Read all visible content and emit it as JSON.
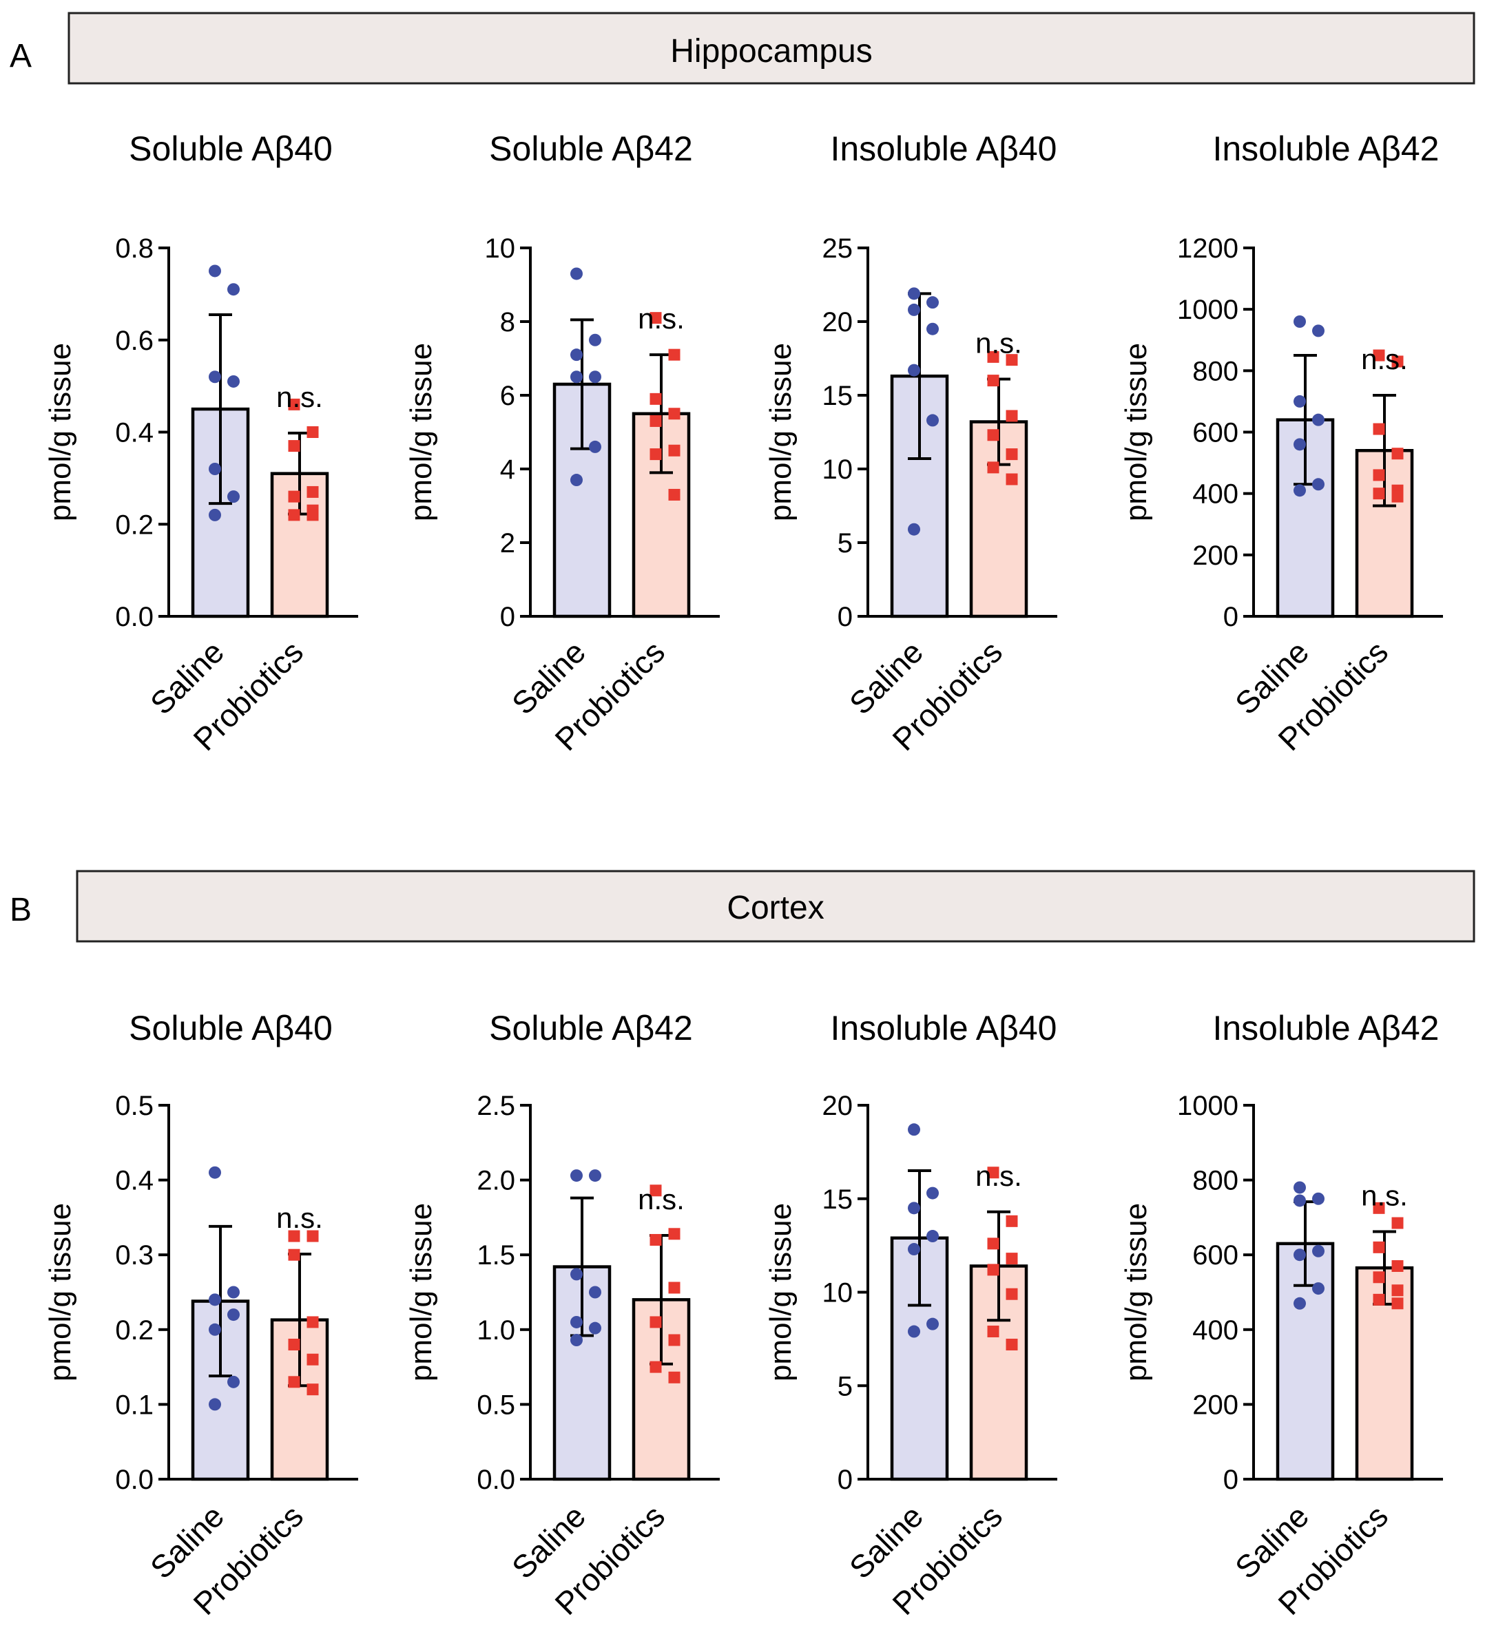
{
  "colors": {
    "saline_fill": "#dcdcf0",
    "probiotics_fill": "#fcdad1",
    "saline_point": "#3f4fa3",
    "probiotics_point": "#e8392f",
    "banner_fill": "#efe9e7"
  },
  "panels": [
    {
      "letter": "A",
      "region": "Hippocampus"
    },
    {
      "letter": "B",
      "region": "Cortex"
    }
  ],
  "chart_data": [
    {
      "type": "bar",
      "panel": "A",
      "title": "Soluble Aβ40",
      "ylabel": "pmol/g tissue",
      "categories": [
        "Saline",
        "Probiotics"
      ],
      "ylim": [
        0,
        0.8
      ],
      "ticks": [
        0.0,
        0.2,
        0.4,
        0.6,
        0.8
      ],
      "tick_labels": [
        "0.0",
        "0.2",
        "0.4",
        "0.6",
        "0.8"
      ],
      "annotation": "n.s.",
      "series": [
        {
          "name": "Saline",
          "mean": 0.45,
          "sd": 0.205,
          "points": [
            0.75,
            0.71,
            0.52,
            0.51,
            0.32,
            0.26,
            0.22
          ]
        },
        {
          "name": "Probiotics",
          "mean": 0.31,
          "sd": 0.088,
          "points": [
            0.46,
            0.4,
            0.37,
            0.27,
            0.26,
            0.23,
            0.22,
            0.22
          ]
        }
      ]
    },
    {
      "type": "bar",
      "panel": "A",
      "title": "Soluble Aβ42",
      "ylabel": "pmol/g tissue",
      "categories": [
        "Saline",
        "Probiotics"
      ],
      "ylim": [
        0,
        10
      ],
      "ticks": [
        0,
        2,
        4,
        6,
        8,
        10
      ],
      "tick_labels": [
        "0",
        "2",
        "4",
        "6",
        "8",
        "10"
      ],
      "annotation": "n.s.",
      "series": [
        {
          "name": "Saline",
          "mean": 6.3,
          "sd": 1.75,
          "points": [
            9.3,
            7.5,
            7.1,
            6.5,
            6.5,
            4.6,
            3.7
          ]
        },
        {
          "name": "Probiotics",
          "mean": 5.5,
          "sd": 1.6,
          "points": [
            8.1,
            7.1,
            5.9,
            5.5,
            5.3,
            4.5,
            4.4,
            3.3
          ]
        }
      ]
    },
    {
      "type": "bar",
      "panel": "A",
      "title": "Insoluble Aβ40",
      "ylabel": "pmol/g tissue",
      "categories": [
        "Saline",
        "Probiotics"
      ],
      "ylim": [
        0,
        25
      ],
      "ticks": [
        0,
        5,
        10,
        15,
        20,
        25
      ],
      "tick_labels": [
        "0",
        "5",
        "10",
        "15",
        "20",
        "25"
      ],
      "annotation": "n.s.",
      "series": [
        {
          "name": "Saline",
          "mean": 16.3,
          "sd": 5.6,
          "points": [
            21.9,
            21.3,
            20.8,
            19.5,
            16.7,
            13.3,
            5.9
          ]
        },
        {
          "name": "Probiotics",
          "mean": 13.2,
          "sd": 2.9,
          "points": [
            17.6,
            17.4,
            16.0,
            13.6,
            12.3,
            11.0,
            10.1,
            9.3
          ]
        }
      ]
    },
    {
      "type": "bar",
      "panel": "A",
      "title": "Insoluble Aβ42",
      "ylabel": "pmol/g tissue",
      "categories": [
        "Saline",
        "Probiotics"
      ],
      "ylim": [
        0,
        1200
      ],
      "ticks": [
        0,
        200,
        400,
        600,
        800,
        1000,
        1200
      ],
      "tick_labels": [
        "0",
        "200",
        "400",
        "600",
        "800",
        "1000",
        "1200"
      ],
      "annotation": "n.s.",
      "series": [
        {
          "name": "Saline",
          "mean": 640,
          "sd": 210,
          "points": [
            960,
            930,
            700,
            640,
            560,
            430,
            410
          ]
        },
        {
          "name": "Probiotics",
          "mean": 540,
          "sd": 180,
          "points": [
            850,
            830,
            610,
            530,
            460,
            410,
            400,
            390
          ]
        }
      ]
    },
    {
      "type": "bar",
      "panel": "B",
      "title": "Soluble Aβ40",
      "ylabel": "pmol/g tissue",
      "categories": [
        "Saline",
        "Probiotics"
      ],
      "ylim": [
        0,
        0.5
      ],
      "ticks": [
        0.0,
        0.1,
        0.2,
        0.3,
        0.4,
        0.5
      ],
      "tick_labels": [
        "0.0",
        "0.1",
        "0.2",
        "0.3",
        "0.4",
        "0.5"
      ],
      "annotation": "n.s.",
      "series": [
        {
          "name": "Saline",
          "mean": 0.238,
          "sd": 0.1,
          "points": [
            0.41,
            0.25,
            0.24,
            0.22,
            0.2,
            0.13,
            0.1
          ]
        },
        {
          "name": "Probiotics",
          "mean": 0.213,
          "sd": 0.088,
          "points": [
            0.325,
            0.325,
            0.3,
            0.21,
            0.18,
            0.16,
            0.13,
            0.12
          ]
        }
      ]
    },
    {
      "type": "bar",
      "panel": "B",
      "title": "Soluble Aβ42",
      "ylabel": "pmol/g tissue",
      "categories": [
        "Saline",
        "Probiotics"
      ],
      "ylim": [
        0,
        2.5
      ],
      "ticks": [
        0.0,
        0.5,
        1.0,
        1.5,
        2.0,
        2.5
      ],
      "tick_labels": [
        "0.0",
        "0.5",
        "1.0",
        "1.5",
        "2.0",
        "2.5"
      ],
      "annotation": "n.s.",
      "series": [
        {
          "name": "Saline",
          "mean": 1.42,
          "sd": 0.46,
          "points": [
            2.03,
            2.03,
            1.37,
            1.25,
            1.05,
            1.01,
            0.93
          ]
        },
        {
          "name": "Probiotics",
          "mean": 1.2,
          "sd": 0.43,
          "points": [
            1.93,
            1.64,
            1.6,
            1.28,
            1.05,
            0.93,
            0.75,
            0.68
          ]
        }
      ]
    },
    {
      "type": "bar",
      "panel": "B",
      "title": "Insoluble Aβ40",
      "ylabel": "pmol/g tissue",
      "categories": [
        "Saline",
        "Probiotics"
      ],
      "ylim": [
        0,
        20
      ],
      "ticks": [
        0,
        5,
        10,
        15,
        20
      ],
      "tick_labels": [
        "0",
        "5",
        "10",
        "15",
        "20"
      ],
      "annotation": "n.s.",
      "series": [
        {
          "name": "Saline",
          "mean": 12.9,
          "sd": 3.6,
          "points": [
            18.7,
            15.3,
            14.5,
            13.0,
            12.3,
            8.3,
            7.9
          ]
        },
        {
          "name": "Probiotics",
          "mean": 11.4,
          "sd": 2.9,
          "points": [
            16.4,
            13.8,
            12.6,
            11.8,
            11.2,
            9.9,
            7.9,
            7.2
          ]
        }
      ]
    },
    {
      "type": "bar",
      "panel": "B",
      "title": "Insoluble Aβ42",
      "ylabel": "pmol/g tissue",
      "categories": [
        "Saline",
        "Probiotics"
      ],
      "ylim": [
        0,
        1000
      ],
      "ticks": [
        0,
        200,
        400,
        600,
        800,
        1000
      ],
      "tick_labels": [
        "0",
        "200",
        "400",
        "600",
        "800",
        "1000"
      ],
      "annotation": "n.s.",
      "series": [
        {
          "name": "Saline",
          "mean": 630,
          "sd": 112,
          "points": [
            780,
            750,
            745,
            610,
            600,
            510,
            470
          ]
        },
        {
          "name": "Probiotics",
          "mean": 565,
          "sd": 97,
          "points": [
            725,
            685,
            620,
            570,
            540,
            505,
            480,
            470
          ]
        }
      ]
    }
  ]
}
